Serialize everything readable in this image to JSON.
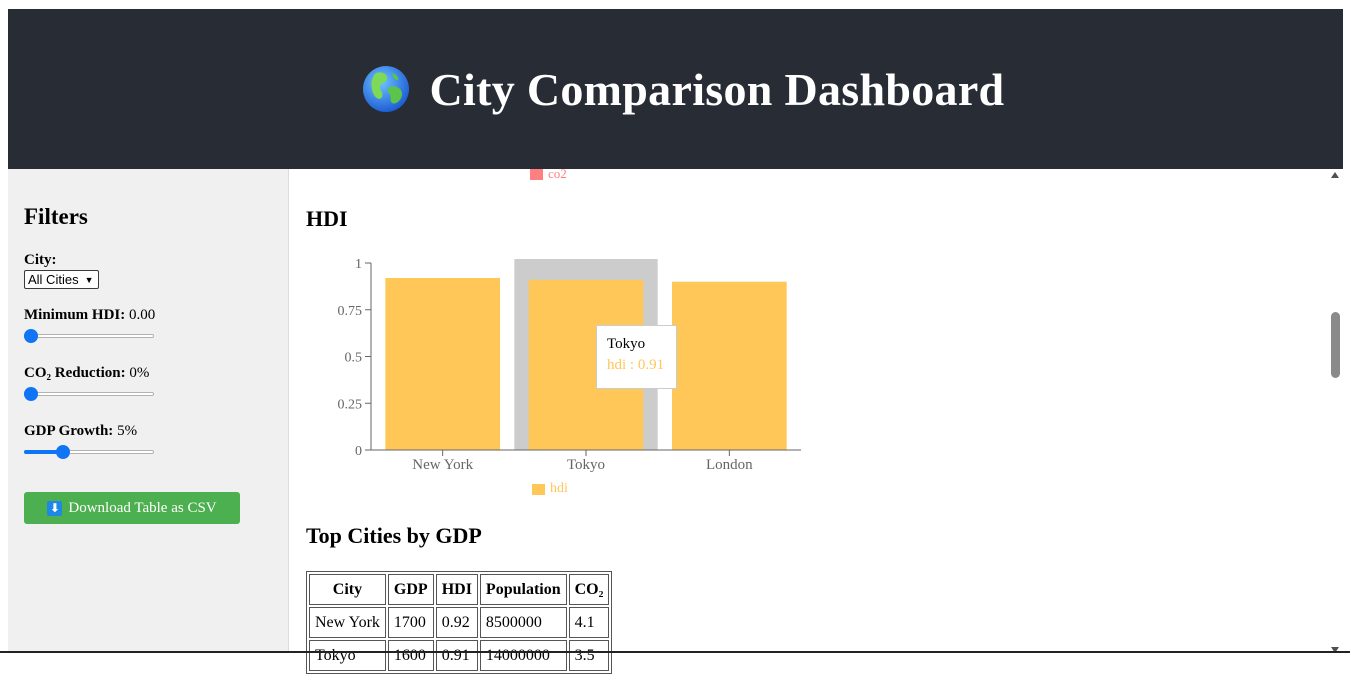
{
  "header": {
    "title": "City Comparison Dashboard",
    "icon": "globe-icon",
    "background": "#282c34"
  },
  "sidebar": {
    "title": "Filters",
    "city": {
      "label": "City:",
      "selected": "All Cities"
    },
    "min_hdi": {
      "label": "Minimum HDI:",
      "value": "0.00",
      "level": 0
    },
    "co2_reduction": {
      "label": "CO₂ Reduction:",
      "value": "0%",
      "level": 0
    },
    "gdp_growth": {
      "label": "GDP Growth:",
      "value": "5%",
      "level": 0.28
    },
    "download_button": {
      "label": "Download Table as CSV",
      "icon": "download-icon",
      "color": "#4caf50"
    }
  },
  "main": {
    "co2_legend": "co2",
    "hdi_section_title": "HDI",
    "top_cities_title": "Top Cities by GDP",
    "tooltip": {
      "name": "Tokyo",
      "value": "hdi : 0.91"
    }
  },
  "chart_data": {
    "type": "bar",
    "categories": [
      "New York",
      "Tokyo",
      "London"
    ],
    "series": [
      {
        "name": "hdi",
        "values": [
          0.92,
          0.91,
          0.9
        ],
        "color": "#ffc658"
      }
    ],
    "ylim": [
      0,
      1
    ],
    "yticks": [
      "0",
      "0.25",
      "0.5",
      "0.75",
      "1"
    ],
    "highlighted": "Tokyo",
    "legend": "bottom-center"
  },
  "table": {
    "headers": [
      "City",
      "GDP",
      "HDI",
      "Population",
      "CO₂"
    ],
    "rows": [
      [
        "New York",
        "1700",
        "0.92",
        "8500000",
        "4.1"
      ],
      [
        "Tokyo",
        "1600",
        "0.91",
        "14000000",
        "3.5"
      ]
    ]
  }
}
